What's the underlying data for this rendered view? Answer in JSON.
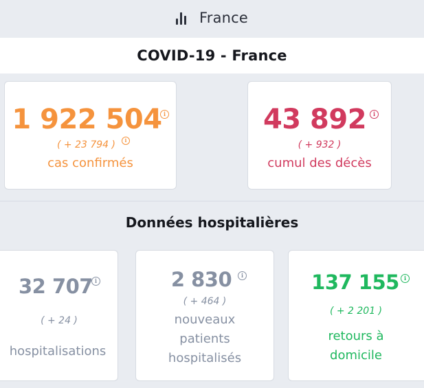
{
  "tab": {
    "label": "France",
    "icon": "bar-chart-icon"
  },
  "title": "COVID-19 - France",
  "summary": {
    "confirmed": {
      "value": "1 922 504",
      "delta": "( + 23 794 )",
      "label": "cas confirmés",
      "color": "#f5933d"
    },
    "deaths": {
      "value": "43 892",
      "delta": "( + 932 )",
      "label": "cumul des décès",
      "color": "#d13a5e"
    }
  },
  "hospital": {
    "heading": "Données hospitalières",
    "hospitalisations": {
      "value": "32 707",
      "delta": "( + 24 )",
      "label": "hospitalisations",
      "color": "#8690a2"
    },
    "new_patients": {
      "value": "2 830",
      "delta": "( + 464 )",
      "label_lines": [
        "nouveaux",
        "patients",
        "hospitalisés"
      ],
      "color": "#8690a2"
    },
    "returns_home": {
      "value": "137 155",
      "delta": "( + 2 201 )",
      "label_lines": [
        "retours à",
        "domicile"
      ],
      "color": "#1fb85e"
    }
  },
  "info_glyph": "i"
}
